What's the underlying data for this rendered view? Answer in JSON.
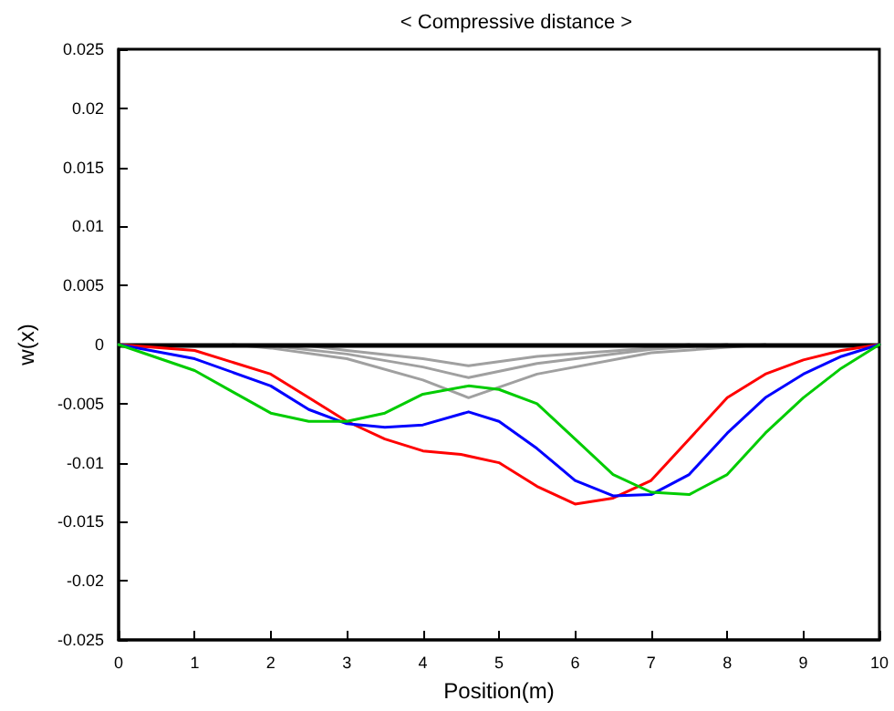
{
  "chart_data": {
    "type": "line",
    "title": "< Compressive distance >",
    "xlabel": "Position(m)",
    "ylabel": "w(x)",
    "xlim": [
      0,
      10
    ],
    "xticks": [
      0,
      1,
      2,
      3,
      4,
      5,
      6,
      7,
      8,
      9,
      10
    ],
    "ylim": [
      -0.025,
      0.025
    ],
    "yticks": [
      -0.025,
      -0.02,
      -0.015,
      -0.01,
      -0.005,
      0,
      0.005,
      0.01,
      0.015,
      0.02,
      0.025
    ],
    "grid": false,
    "marker": "none",
    "line_style": "solid",
    "ref_lines": [
      {
        "axis": "y",
        "value": 0,
        "color": "#000000"
      }
    ],
    "series": [
      {
        "color": "#a0a0a0",
        "x": [
          1.5,
          2,
          3,
          4,
          4.6,
          5.5,
          7,
          8.5
        ],
        "values": [
          0,
          -0.0003,
          -0.0012,
          -0.003,
          -0.0045,
          -0.0025,
          -0.0007,
          0
        ]
      },
      {
        "color": "#a0a0a0",
        "x": [
          2,
          3,
          4,
          4.6,
          5.5,
          7,
          8
        ],
        "values": [
          -0.0001,
          -0.0008,
          -0.0019,
          -0.0028,
          -0.0016,
          -0.0004,
          0
        ]
      },
      {
        "color": "#a0a0a0",
        "x": [
          2.5,
          3,
          4,
          4.6,
          5.5,
          7,
          7.5
        ],
        "values": [
          -0.0001,
          -0.0005,
          -0.0012,
          -0.0018,
          -0.001,
          -0.0003,
          0
        ]
      },
      {
        "color": "#ff0000",
        "x": [
          0,
          1,
          2,
          2.5,
          3,
          3.5,
          4,
          4.5,
          5,
          5.5,
          6,
          6.5,
          7,
          7.5,
          8,
          8.5,
          9,
          9.5,
          10
        ],
        "values": [
          0,
          -0.0005,
          -0.0025,
          -0.0045,
          -0.0065,
          -0.008,
          -0.009,
          -0.0093,
          -0.01,
          -0.012,
          -0.0135,
          -0.013,
          -0.0115,
          -0.008,
          -0.0045,
          -0.0025,
          -0.0013,
          -0.0005,
          0
        ]
      },
      {
        "color": "#0000ff",
        "x": [
          0,
          1,
          2,
          2.5,
          3,
          3.5,
          4,
          4.6,
          5,
          5.5,
          6,
          6.5,
          7,
          7.5,
          8,
          8.5,
          9,
          9.5,
          10
        ],
        "values": [
          0,
          -0.0012,
          -0.0035,
          -0.0055,
          -0.0067,
          -0.007,
          -0.0068,
          -0.0057,
          -0.0065,
          -0.0088,
          -0.0115,
          -0.0128,
          -0.0127,
          -0.011,
          -0.0075,
          -0.0045,
          -0.0025,
          -0.001,
          0
        ]
      },
      {
        "color": "#00cc00",
        "x": [
          0,
          1,
          1.5,
          2,
          2.5,
          3,
          3.5,
          4,
          4.6,
          5,
          5.5,
          6,
          6.5,
          7,
          7.5,
          8,
          8.5,
          9,
          9.5,
          10
        ],
        "values": [
          0,
          -0.0022,
          -0.004,
          -0.0058,
          -0.0065,
          -0.0065,
          -0.0058,
          -0.0042,
          -0.0035,
          -0.0038,
          -0.005,
          -0.008,
          -0.011,
          -0.0125,
          -0.0127,
          -0.011,
          -0.0075,
          -0.0045,
          -0.002,
          0
        ]
      }
    ]
  }
}
